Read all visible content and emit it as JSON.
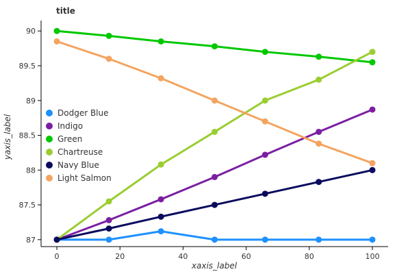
{
  "chart_data": {
    "type": "line",
    "title": "title",
    "xlabel": "xaxis_label",
    "ylabel": "yaxis_label",
    "x": [
      0,
      16.5,
      33,
      50,
      66,
      83,
      100
    ],
    "xlim": [
      -5,
      105
    ],
    "ylim": [
      86.9,
      90.15
    ],
    "xticks": [
      0,
      20,
      40,
      60,
      80,
      100
    ],
    "yticks": [
      87,
      87.5,
      88,
      88.5,
      89,
      89.5,
      90
    ],
    "ytick_labels": [
      "87",
      "87.5",
      "88",
      "88.5",
      "89",
      "89.5",
      "90"
    ],
    "grid": false,
    "legend_position": "left",
    "series": [
      {
        "name": "Dodger Blue",
        "color": "#1e90ff",
        "values": [
          87.0,
          87.0,
          87.12,
          87.0,
          87.0,
          87.0,
          87.0
        ]
      },
      {
        "name": "Indigo",
        "color": "#7b1fa2",
        "values": [
          87.0,
          87.28,
          87.58,
          87.9,
          88.22,
          88.55,
          88.87
        ]
      },
      {
        "name": "Green",
        "color": "#00c800",
        "values": [
          90.0,
          89.93,
          89.85,
          89.78,
          89.7,
          89.63,
          89.55
        ]
      },
      {
        "name": "Chartreuse",
        "color": "#9acd32",
        "values": [
          87.0,
          87.55,
          88.08,
          88.55,
          89.0,
          89.3,
          89.7
        ]
      },
      {
        "name": "Navy Blue",
        "color": "#0a0a5e",
        "values": [
          87.0,
          87.16,
          87.33,
          87.5,
          87.66,
          87.83,
          88.0
        ]
      },
      {
        "name": "Light Salmon",
        "color": "#f4a460",
        "values": [
          89.85,
          89.6,
          89.32,
          89.0,
          88.7,
          88.38,
          88.1
        ]
      }
    ]
  }
}
